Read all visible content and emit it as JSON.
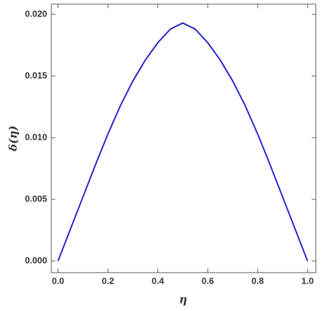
{
  "chart_data": {
    "type": "line",
    "x_label": "η",
    "y_label": "δ(η)",
    "x": [
      0,
      0.05,
      0.1,
      0.15,
      0.2,
      0.25,
      0.3,
      0.35,
      0.4,
      0.45,
      0.5,
      0.55,
      0.6,
      0.65,
      0.7,
      0.75,
      0.8,
      0.85,
      0.9,
      0.95,
      1.0
    ],
    "series": [
      {
        "color": "#1f1fcc",
        "values": [
          0,
          0.0026,
          0.0052,
          0.0078,
          0.0103,
          0.0126,
          0.0146,
          0.0163,
          0.0177,
          0.0188,
          0.0193,
          0.0188,
          0.0177,
          0.0163,
          0.0146,
          0.0126,
          0.0103,
          0.0078,
          0.0052,
          0.0026,
          0
        ]
      }
    ],
    "xlim": [
      -0.027,
      1.033
    ],
    "ylim": [
      -0.00094,
      0.02083
    ],
    "xticks": [
      {
        "value": 0,
        "label": "0.0"
      },
      {
        "value": 0.2,
        "label": "0.2"
      },
      {
        "value": 0.4,
        "label": "0.4"
      },
      {
        "value": 0.6,
        "label": "0.6"
      },
      {
        "value": 0.8,
        "label": "0.8"
      },
      {
        "value": 1.0,
        "label": "1.0"
      }
    ],
    "yticks": [
      {
        "value": 0,
        "label": "0.000"
      },
      {
        "value": 0.005,
        "label": "0.005"
      },
      {
        "value": 0.01,
        "label": "0.010"
      },
      {
        "value": 0.015,
        "label": "0.015"
      },
      {
        "value": 0.02,
        "label": "0.020"
      }
    ]
  }
}
